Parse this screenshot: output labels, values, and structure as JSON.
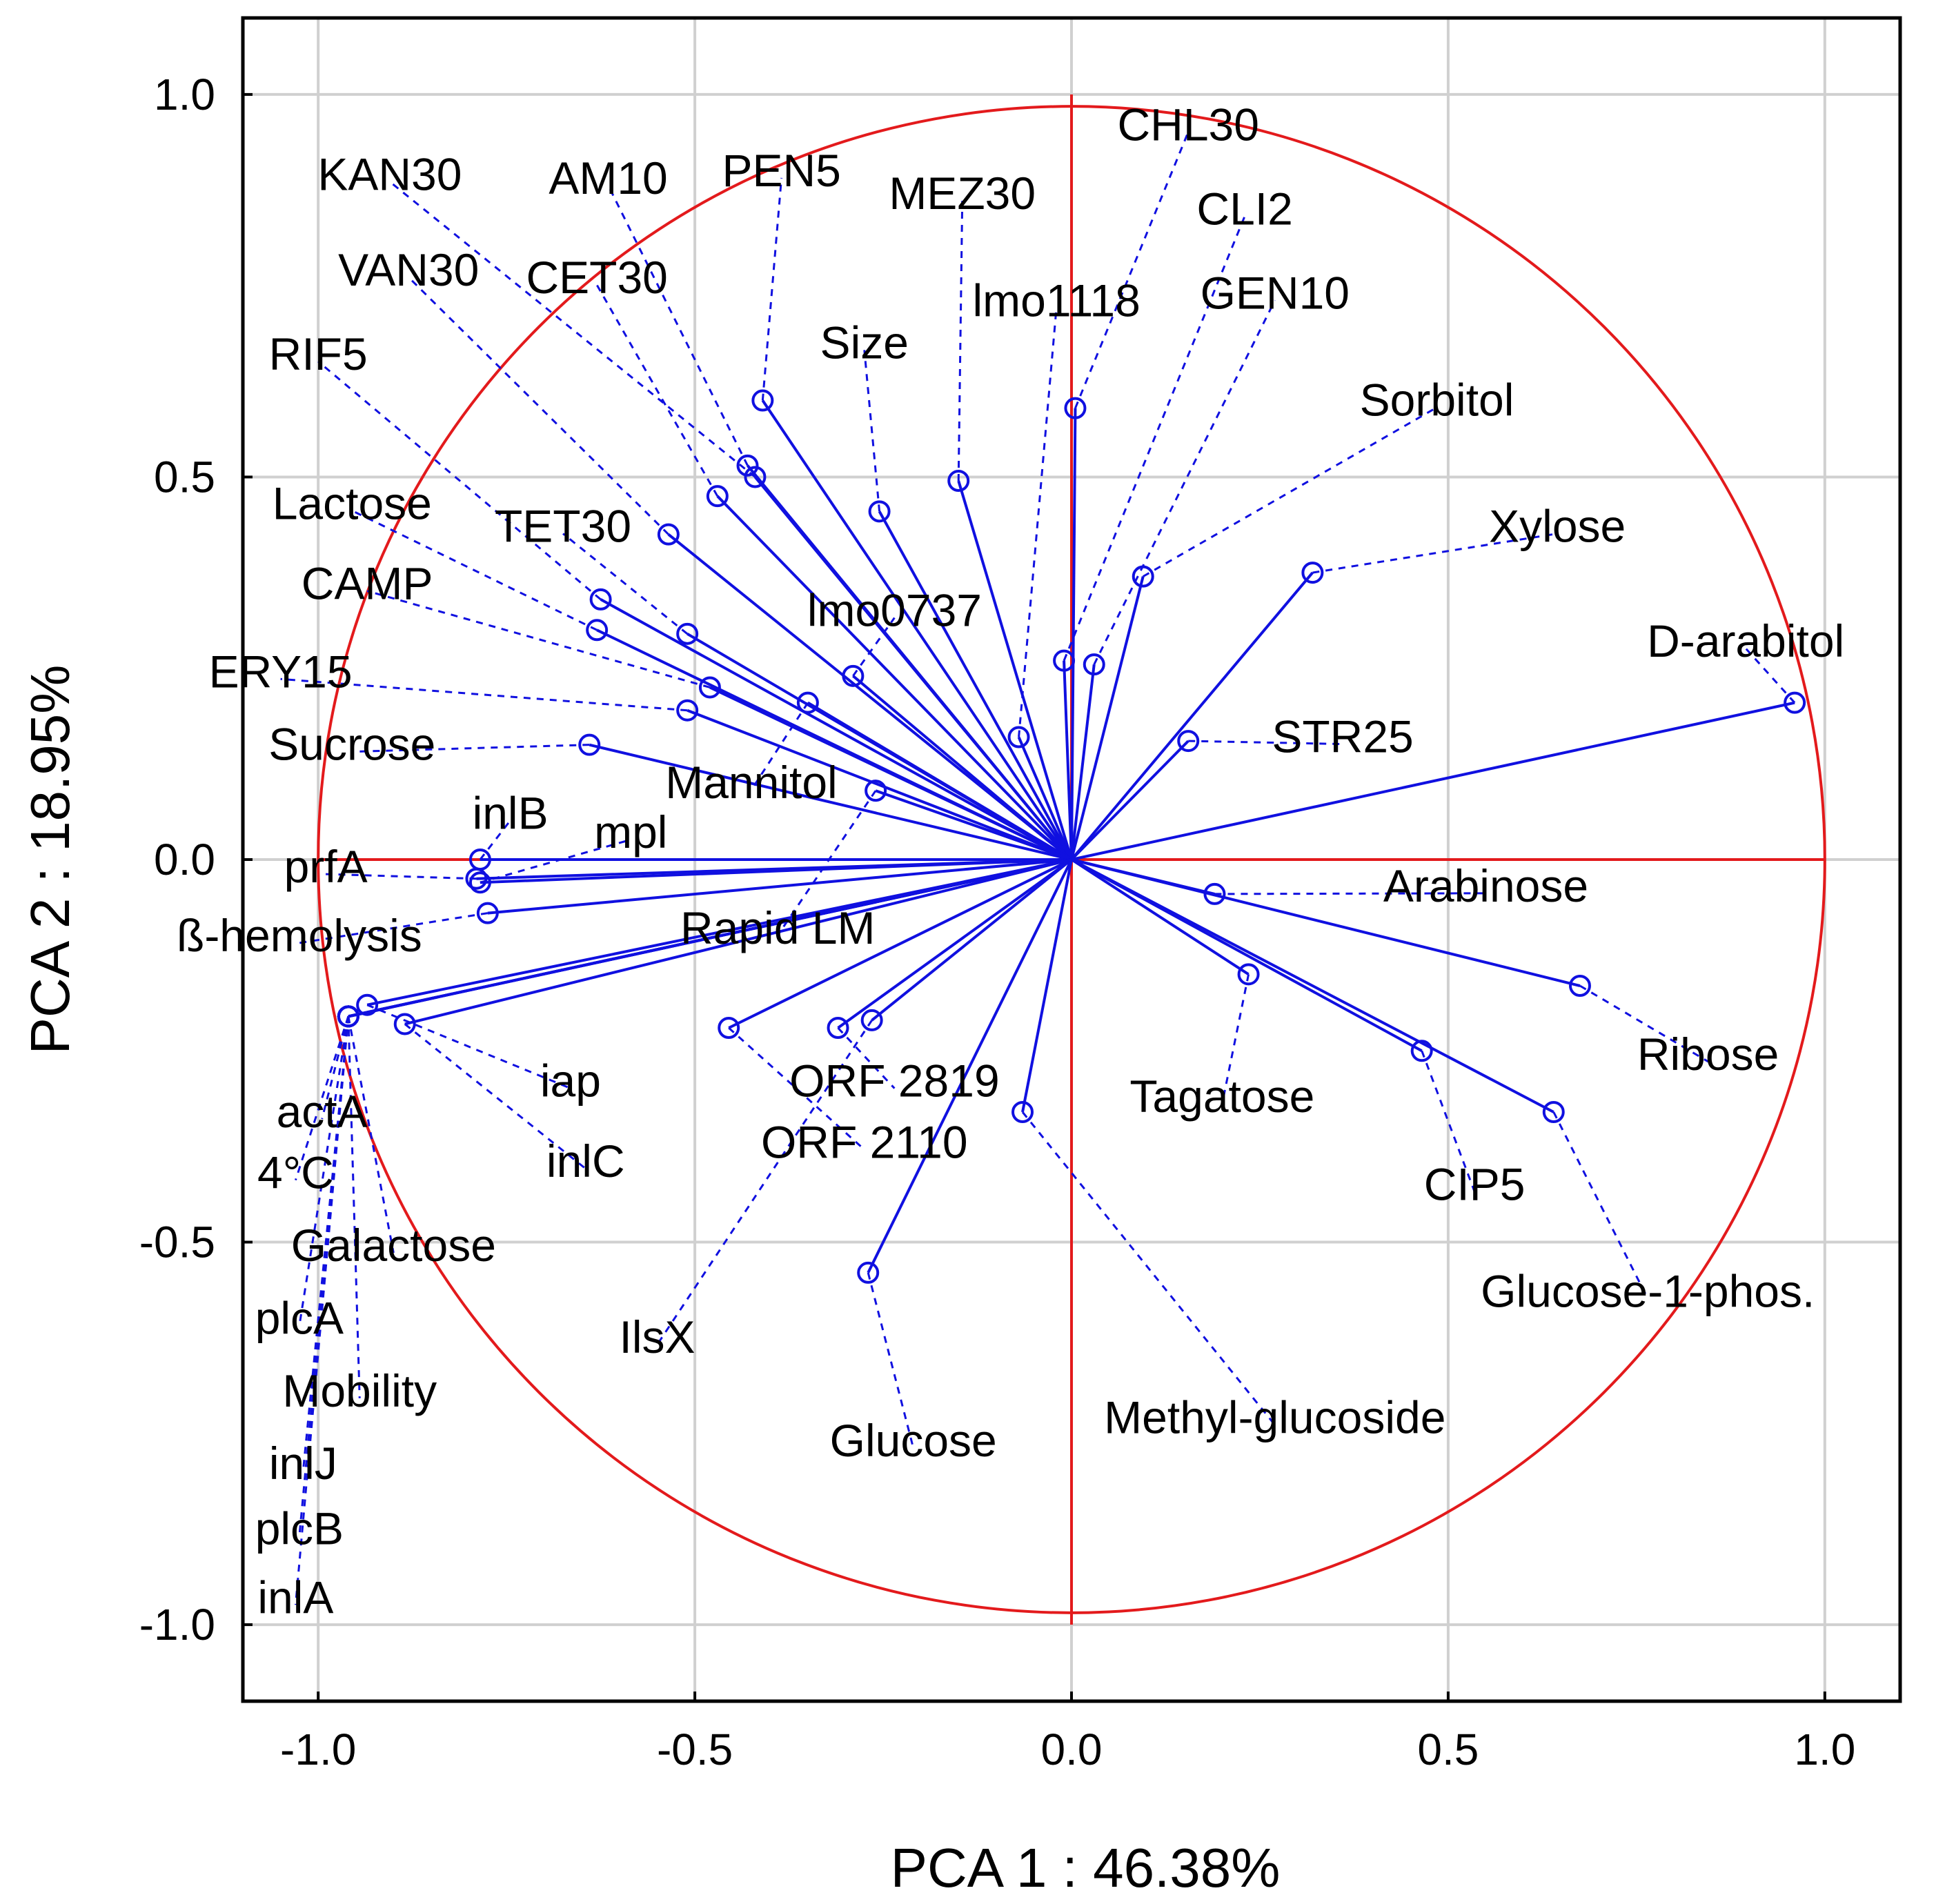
{
  "chart_data": {
    "type": "scatter",
    "subtype": "pca-correlation-circle",
    "xlabel": "PCA 1 : 46.38%",
    "ylabel": "PCA 2 : 18.95%",
    "xlim": [
      -1.1,
      1.1
    ],
    "ylim": [
      -1.1,
      1.1
    ],
    "xticks": [
      -1.0,
      -0.5,
      0.0,
      0.5,
      1.0
    ],
    "yticks": [
      -1.0,
      -0.5,
      0.0,
      0.5,
      1.0
    ],
    "xtick_labels": [
      "-1.0",
      "-0.5",
      "0.0",
      "0.5",
      "1.0"
    ],
    "ytick_labels": [
      "-1.0",
      "-0.5",
      "0.0",
      "0.5",
      "1.0"
    ],
    "grid": true,
    "circle_radius": 1.0,
    "colors": {
      "circle": "#e31a1c",
      "vector": "#1010e0",
      "grid": "#d0d0d0",
      "frame": "#000000"
    },
    "variables": [
      {
        "name": "CHL30",
        "x": 0.005,
        "y": 0.59,
        "lx": 0.155,
        "ly": 0.96
      },
      {
        "name": "CLI2",
        "x": -0.01,
        "y": 0.26,
        "lx": 0.23,
        "ly": 0.85
      },
      {
        "name": "GEN10",
        "x": 0.03,
        "y": 0.255,
        "lx": 0.27,
        "ly": 0.74
      },
      {
        "name": "lmo1118",
        "x": -0.07,
        "y": 0.16,
        "lx": -0.02,
        "ly": 0.73
      },
      {
        "name": "MEZ30",
        "x": -0.15,
        "y": 0.495,
        "lx": -0.145,
        "ly": 0.87
      },
      {
        "name": "PEN5",
        "x": -0.41,
        "y": 0.6,
        "lx": -0.385,
        "ly": 0.9
      },
      {
        "name": "AM10",
        "x": -0.43,
        "y": 0.515,
        "lx": -0.615,
        "ly": 0.89
      },
      {
        "name": "KAN30",
        "x": -0.42,
        "y": 0.5,
        "lx": -0.905,
        "ly": 0.895
      },
      {
        "name": "CET30",
        "x": -0.47,
        "y": 0.475,
        "lx": -0.63,
        "ly": 0.76
      },
      {
        "name": "VAN30",
        "x": -0.535,
        "y": 0.425,
        "lx": -0.88,
        "ly": 0.77
      },
      {
        "name": "RIF5",
        "x": -0.625,
        "y": 0.34,
        "lx": -1.0,
        "ly": 0.66
      },
      {
        "name": "TET30",
        "x": -0.51,
        "y": 0.295,
        "lx": -0.675,
        "ly": 0.435
      },
      {
        "name": "Lactose",
        "x": -0.63,
        "y": 0.3,
        "lx": -0.955,
        "ly": 0.465
      },
      {
        "name": "CAMP",
        "x": -0.48,
        "y": 0.225,
        "lx": -0.935,
        "ly": 0.36
      },
      {
        "name": "ERY15",
        "x": -0.51,
        "y": 0.195,
        "lx": -1.05,
        "ly": 0.245
      },
      {
        "name": "Sucrose",
        "x": -0.64,
        "y": 0.15,
        "lx": -0.955,
        "ly": 0.15
      },
      {
        "name": "Size",
        "x": -0.255,
        "y": 0.455,
        "lx": -0.275,
        "ly": 0.675
      },
      {
        "name": "lmo0737",
        "x": -0.29,
        "y": 0.24,
        "lx": -0.235,
        "ly": 0.325
      },
      {
        "name": "Mannitol",
        "x": -0.35,
        "y": 0.205,
        "lx": -0.425,
        "ly": 0.1
      },
      {
        "name": "inlB",
        "x": -0.785,
        "y": 0.0,
        "lx": -0.745,
        "ly": 0.06
      },
      {
        "name": "mpl",
        "x": -0.785,
        "y": -0.03,
        "lx": -0.585,
        "ly": 0.035
      },
      {
        "name": "prfA",
        "x": -0.79,
        "y": -0.025,
        "lx": -0.99,
        "ly": -0.01
      },
      {
        "name": "ß-hemolysis",
        "x": -0.775,
        "y": -0.07,
        "lx": -1.025,
        "ly": -0.1
      },
      {
        "name": "Rapid LM",
        "x": -0.26,
        "y": 0.09,
        "lx": -0.39,
        "ly": -0.09
      },
      {
        "name": "iap",
        "x": -0.935,
        "y": -0.19,
        "lx": -0.665,
        "ly": -0.29
      },
      {
        "name": "inlC",
        "x": -0.885,
        "y": -0.215,
        "lx": -0.645,
        "ly": -0.395
      },
      {
        "name": "ORF 2819",
        "x": -0.31,
        "y": -0.22,
        "lx": -0.235,
        "ly": -0.29
      },
      {
        "name": "ORF 2110",
        "x": -0.455,
        "y": -0.22,
        "lx": -0.275,
        "ly": -0.37
      },
      {
        "name": "IlsX",
        "x": -0.265,
        "y": -0.21,
        "lx": -0.55,
        "ly": -0.625
      },
      {
        "name": "Glucose",
        "x": -0.27,
        "y": -0.54,
        "lx": -0.21,
        "ly": -0.76
      },
      {
        "name": "Methyl-glucoside",
        "x": -0.065,
        "y": -0.33,
        "lx": 0.27,
        "ly": -0.73
      },
      {
        "name": "Tagatose",
        "x": 0.235,
        "y": -0.15,
        "lx": 0.2,
        "ly": -0.31
      },
      {
        "name": "Arabinose",
        "x": 0.19,
        "y": -0.045,
        "lx": 0.55,
        "ly": -0.035
      },
      {
        "name": "Ribose",
        "x": 0.675,
        "y": -0.165,
        "lx": 0.845,
        "ly": -0.255
      },
      {
        "name": "CIP5",
        "x": 0.465,
        "y": -0.25,
        "lx": 0.535,
        "ly": -0.425
      },
      {
        "name": "Glucose-1-phos.",
        "x": 0.64,
        "y": -0.33,
        "lx": 0.765,
        "ly": -0.565
      },
      {
        "name": "Xylose",
        "x": 0.32,
        "y": 0.375,
        "lx": 0.645,
        "ly": 0.435
      },
      {
        "name": "Sorbitol",
        "x": 0.095,
        "y": 0.37,
        "lx": 0.485,
        "ly": 0.6
      },
      {
        "name": "STR25",
        "x": 0.155,
        "y": 0.155,
        "lx": 0.36,
        "ly": 0.16
      },
      {
        "name": "D-arabitol",
        "x": 0.96,
        "y": 0.205,
        "lx": 0.895,
        "ly": 0.285
      },
      {
        "name": "actA",
        "x": -0.96,
        "y": -0.205,
        "lx": -0.995,
        "ly": -0.33
      },
      {
        "name": "4°C",
        "x": -0.96,
        "y": -0.205,
        "lx": -1.03,
        "ly": -0.41
      },
      {
        "name": "Galactose",
        "x": -0.96,
        "y": -0.205,
        "lx": -0.9,
        "ly": -0.505
      },
      {
        "name": "plcA",
        "x": -0.96,
        "y": -0.205,
        "lx": -1.025,
        "ly": -0.6
      },
      {
        "name": "Mobility",
        "x": -0.96,
        "y": -0.205,
        "lx": -0.945,
        "ly": -0.695
      },
      {
        "name": "inlJ",
        "x": -0.96,
        "y": -0.205,
        "lx": -1.02,
        "ly": -0.79
      },
      {
        "name": "plcB",
        "x": -0.96,
        "y": -0.205,
        "lx": -1.025,
        "ly": -0.875
      },
      {
        "name": "inlA",
        "x": -0.96,
        "y": -0.205,
        "lx": -1.03,
        "ly": -0.965
      }
    ]
  }
}
